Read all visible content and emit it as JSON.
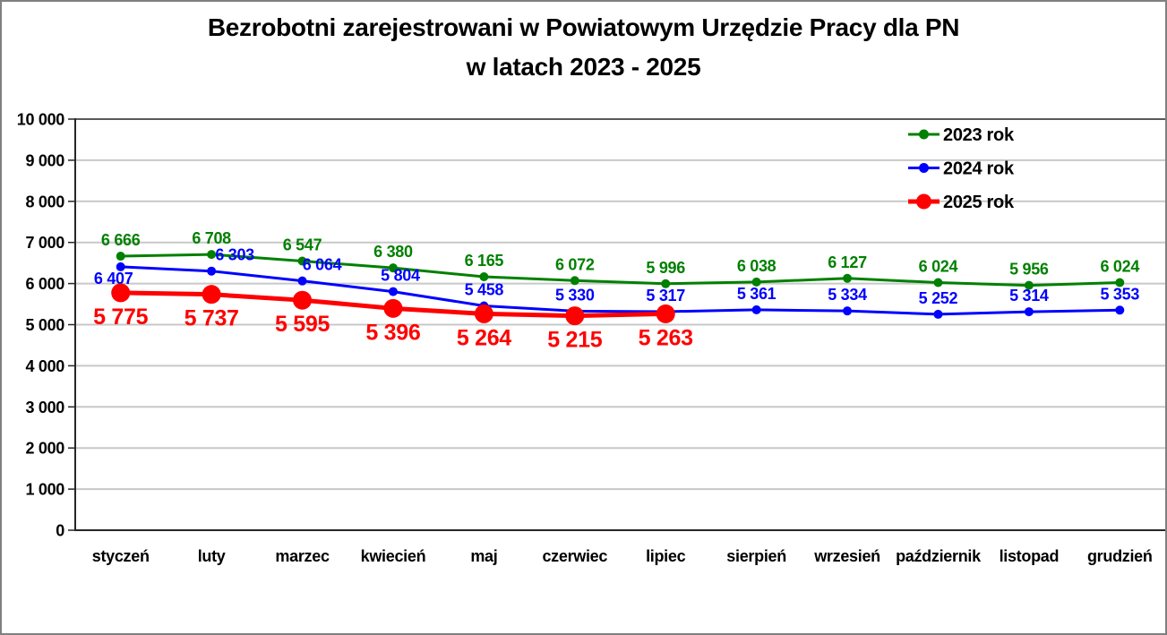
{
  "title": {
    "line1": "Bezrobotni zarejestrowani w Powiatowym Urzędzie Pracy dla PN",
    "line2": "w latach 2023 - 2025"
  },
  "chart_data": {
    "type": "line",
    "title": "Bezrobotni zarejestrowani w Powiatowym Urzędzie Pracy dla PN w latach 2023 - 2025",
    "categories": [
      "styczeń",
      "luty",
      "marzec",
      "kwiecień",
      "maj",
      "czerwiec",
      "lipiec",
      "sierpień",
      "wrzesień",
      "październik",
      "listopad",
      "grudzień"
    ],
    "series": [
      {
        "name": "2023 rok",
        "color": "#008000",
        "values": [
          6666,
          6708,
          6547,
          6380,
          6165,
          6072,
          5996,
          6038,
          6127,
          6024,
          5956,
          6024
        ],
        "label_position": "above",
        "line_width": 3,
        "marker_radius": 5,
        "label_font_size": 18
      },
      {
        "name": "2024 rok",
        "color": "#0000FF",
        "values": [
          6407,
          6303,
          6064,
          5804,
          5458,
          5330,
          5317,
          5361,
          5334,
          5252,
          5314,
          5353
        ],
        "label_position": "above",
        "line_width": 3,
        "marker_radius": 5,
        "label_font_size": 18,
        "label_offsets": {
          "0": [
            -8,
            31
          ],
          "1": [
            26,
            0
          ],
          "2": [
            22,
            0
          ],
          "3": [
            8,
            0
          ]
        }
      },
      {
        "name": "2025 rok",
        "color": "#FF0000",
        "values": [
          5775,
          5737,
          5595,
          5396,
          5264,
          5215,
          5263
        ],
        "label_position": "below",
        "line_width": 5,
        "marker_radius": 10.5,
        "label_font_size": 25
      }
    ],
    "xlabel": "",
    "ylabel": "",
    "ylim": [
      0,
      10000
    ],
    "ytick_step": 1000,
    "ytick_labels": [
      "0",
      "1 000",
      "2 000",
      "3 000",
      "4 000",
      "5 000",
      "6 000",
      "7 000",
      "8 000",
      "9 000",
      "10 000"
    ],
    "grid": true,
    "legend_position": "top-right",
    "legend_entries": [
      "2023 rok",
      "2024 rok",
      "2025 rok"
    ],
    "number_format": "thousands-space"
  },
  "colors": {
    "background": "#FFFFFF",
    "frame_border": "#808080",
    "axis": "#262626",
    "gridline": "#C8C8C8",
    "plot_top_border": "#595959",
    "text": "#000000",
    "series_2023": "#008000",
    "series_2024": "#0000FF",
    "series_2025": "#FF0000"
  }
}
